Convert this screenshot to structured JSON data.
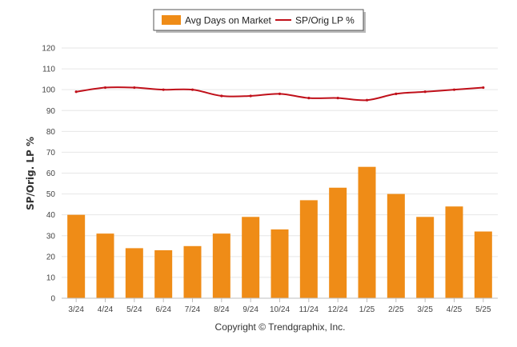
{
  "chart_data": {
    "type": "bar",
    "ylabel": "SP/Orig. LP %",
    "ylim": [
      0,
      120
    ],
    "yticks": [
      0,
      10,
      20,
      30,
      40,
      50,
      60,
      70,
      80,
      90,
      100,
      110,
      120
    ],
    "grid": true,
    "legend_position": "top-center",
    "categories": [
      "3/24",
      "4/24",
      "5/24",
      "6/24",
      "7/24",
      "8/24",
      "9/24",
      "10/24",
      "11/24",
      "12/24",
      "1/25",
      "2/25",
      "3/25",
      "4/25",
      "5/25"
    ],
    "series": [
      {
        "name": "Avg Days on Market",
        "type": "bar",
        "color": "#ef8c17",
        "values": [
          40,
          31,
          24,
          23,
          25,
          31,
          39,
          33,
          47,
          53,
          63,
          50,
          39,
          44,
          32
        ]
      },
      {
        "name": "SP/Orig LP %",
        "type": "line",
        "color": "#c0101a",
        "values": [
          99,
          101,
          101,
          100,
          100,
          97,
          97,
          98,
          96,
          96,
          95,
          98,
          99,
          100,
          101
        ]
      }
    ]
  },
  "footer": {
    "credit": "Copyright © Trendgraphix, Inc."
  }
}
